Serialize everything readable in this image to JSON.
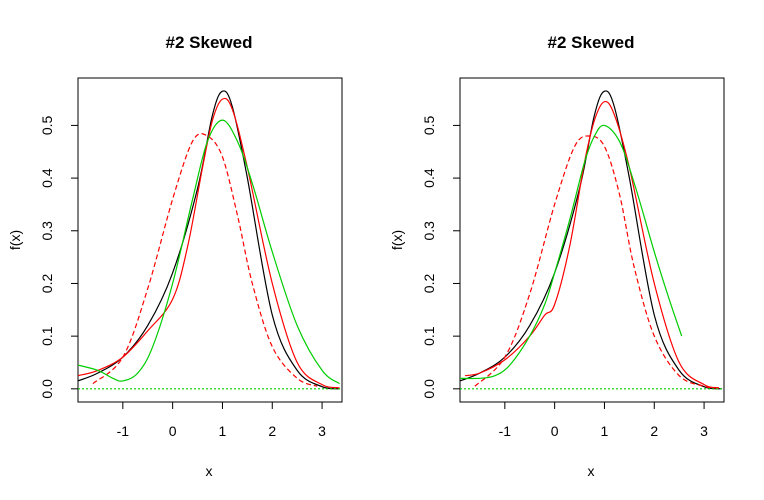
{
  "chart_data": [
    {
      "type": "line",
      "title": "#2 Skewed",
      "xlabel": "x",
      "ylabel": "f(x)",
      "xlim": [
        -1.9,
        3.4
      ],
      "ylim": [
        -0.025,
        0.59
      ],
      "xticks": [
        -1,
        0,
        1,
        2,
        3
      ],
      "yticks": [
        0.0,
        0.1,
        0.2,
        0.3,
        0.4,
        0.5
      ],
      "xtick_labels": [
        "-1",
        "0",
        "1",
        "2",
        "3"
      ],
      "ytick_labels": [
        "0.0",
        "0.1",
        "0.2",
        "0.3",
        "0.4",
        "0.5"
      ],
      "series": [
        {
          "color": "#000000",
          "style": "solid",
          "x": [
            -1.9,
            -1.5,
            -1.0,
            -0.5,
            0.0,
            0.5,
            0.8,
            1.0,
            1.2,
            1.5,
            2.0,
            2.5,
            3.0,
            3.35
          ],
          "y": [
            0.015,
            0.03,
            0.06,
            0.12,
            0.22,
            0.38,
            0.52,
            0.565,
            0.535,
            0.4,
            0.14,
            0.035,
            0.004,
            0.0
          ]
        },
        {
          "color": "#ff0000",
          "style": "solid",
          "x": [
            -1.9,
            -1.5,
            -1.0,
            -0.5,
            0.0,
            0.3,
            0.6,
            0.8,
            1.0,
            1.2,
            1.5,
            2.0,
            2.5,
            3.0,
            3.35
          ],
          "y": [
            0.025,
            0.035,
            0.06,
            0.11,
            0.17,
            0.27,
            0.42,
            0.51,
            0.55,
            0.53,
            0.42,
            0.2,
            0.05,
            0.008,
            0.002
          ]
        },
        {
          "color": "#ff0000",
          "style": "dashed",
          "x": [
            -1.6,
            -1.0,
            -0.5,
            0.0,
            0.4,
            0.7,
            1.0,
            1.3,
            1.6,
            2.0,
            2.5,
            2.9
          ],
          "y": [
            0.01,
            0.06,
            0.19,
            0.36,
            0.47,
            0.48,
            0.44,
            0.33,
            0.2,
            0.08,
            0.02,
            0.005
          ]
        },
        {
          "color": "#00cd00",
          "style": "solid",
          "x": [
            -1.9,
            -1.5,
            -1.2,
            -1.0,
            -0.7,
            -0.4,
            0.0,
            0.4,
            0.7,
            1.0,
            1.3,
            1.6,
            2.0,
            2.5,
            3.0,
            3.35
          ],
          "y": [
            0.045,
            0.035,
            0.02,
            0.015,
            0.03,
            0.08,
            0.2,
            0.36,
            0.47,
            0.51,
            0.47,
            0.39,
            0.26,
            0.12,
            0.035,
            0.01
          ]
        },
        {
          "color": "#00cd00",
          "style": "dotted",
          "x": [
            -1.9,
            3.4
          ],
          "y": [
            0.0,
            0.0
          ]
        }
      ]
    },
    {
      "type": "line",
      "title": "#2 Skewed",
      "xlabel": "x",
      "ylabel": "f(x)",
      "xlim": [
        -1.9,
        3.4
      ],
      "ylim": [
        -0.025,
        0.59
      ],
      "xticks": [
        -1,
        0,
        1,
        2,
        3
      ],
      "yticks": [
        0.0,
        0.1,
        0.2,
        0.3,
        0.4,
        0.5
      ],
      "xtick_labels": [
        "-1",
        "0",
        "1",
        "2",
        "3"
      ],
      "ytick_labels": [
        "0.0",
        "0.1",
        "0.2",
        "0.3",
        "0.4",
        "0.5"
      ],
      "series": [
        {
          "color": "#000000",
          "style": "solid",
          "x": [
            -1.9,
            -1.5,
            -1.0,
            -0.5,
            0.0,
            0.5,
            0.8,
            1.0,
            1.2,
            1.5,
            2.0,
            2.5,
            3.0,
            3.35
          ],
          "y": [
            0.015,
            0.03,
            0.06,
            0.12,
            0.22,
            0.38,
            0.52,
            0.565,
            0.535,
            0.4,
            0.14,
            0.035,
            0.004,
            0.0
          ]
        },
        {
          "color": "#ff0000",
          "style": "solid",
          "x": [
            -1.8,
            -1.5,
            -1.0,
            -0.5,
            -0.2,
            0.0,
            0.3,
            0.6,
            0.8,
            1.0,
            1.2,
            1.5,
            2.0,
            2.5,
            3.0,
            3.3
          ],
          "y": [
            0.025,
            0.03,
            0.055,
            0.1,
            0.14,
            0.16,
            0.27,
            0.43,
            0.51,
            0.545,
            0.52,
            0.42,
            0.2,
            0.05,
            0.008,
            0.002
          ]
        },
        {
          "color": "#ff0000",
          "style": "dashed",
          "x": [
            -1.6,
            -1.0,
            -0.5,
            0.0,
            0.4,
            0.7,
            1.0,
            1.3,
            1.6,
            2.0,
            2.5,
            3.0,
            3.3
          ],
          "y": [
            0.005,
            0.06,
            0.18,
            0.35,
            0.46,
            0.48,
            0.46,
            0.37,
            0.23,
            0.1,
            0.025,
            0.005,
            0.001
          ]
        },
        {
          "color": "#00cd00",
          "style": "solid",
          "x": [
            -1.9,
            -1.5,
            -1.2,
            -0.9,
            -0.5,
            -0.2,
            0.0,
            0.3,
            0.6,
            0.8,
            1.0,
            1.3,
            1.6,
            2.0,
            2.3,
            2.55
          ],
          "y": [
            0.02,
            0.02,
            0.025,
            0.045,
            0.1,
            0.16,
            0.22,
            0.32,
            0.43,
            0.48,
            0.5,
            0.47,
            0.39,
            0.26,
            0.17,
            0.1
          ]
        },
        {
          "color": "#00cd00",
          "style": "dotted",
          "x": [
            -1.9,
            3.4
          ],
          "y": [
            0.0,
            0.0
          ]
        }
      ]
    }
  ]
}
